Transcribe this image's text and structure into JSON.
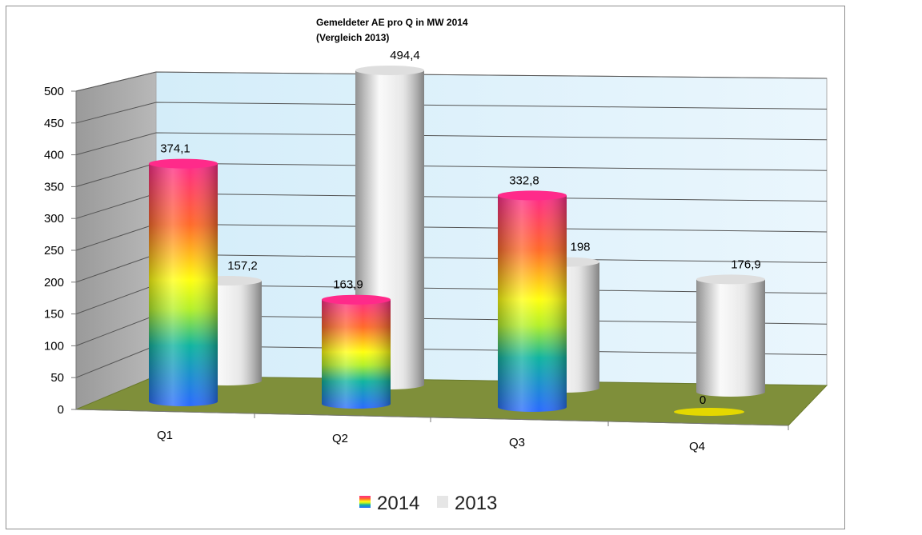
{
  "chart_data": {
    "type": "bar",
    "title": "Gemeldeter AE  pro Q in MW 2014",
    "subtitle": "(Vergleich 2013)",
    "categories": [
      "Q1",
      "Q2",
      "Q3",
      "Q4"
    ],
    "series": [
      {
        "name": "2014",
        "values": [
          374.1,
          163.9,
          332.8,
          0
        ],
        "labels": [
          "374,1",
          "163,9",
          "332,8",
          "0"
        ],
        "color": "rainbow-gradient"
      },
      {
        "name": "2013",
        "values": [
          157.2,
          494.4,
          198,
          176.9
        ],
        "labels": [
          "157,2",
          "494,4",
          "198",
          "176,9"
        ],
        "color": "#e6e6e6"
      }
    ],
    "yticks": [
      "0",
      "50",
      "100",
      "150",
      "200",
      "250",
      "300",
      "350",
      "400",
      "450",
      "500"
    ],
    "ylim": [
      0,
      500
    ],
    "grid": true,
    "legend": "bottom",
    "style": "3d-cylinder",
    "colors": {
      "wall": "#dff1fb",
      "side_wall": "#a8a8a8",
      "floor": "#7f8f3a",
      "zero_disc": "#e4d800"
    }
  }
}
